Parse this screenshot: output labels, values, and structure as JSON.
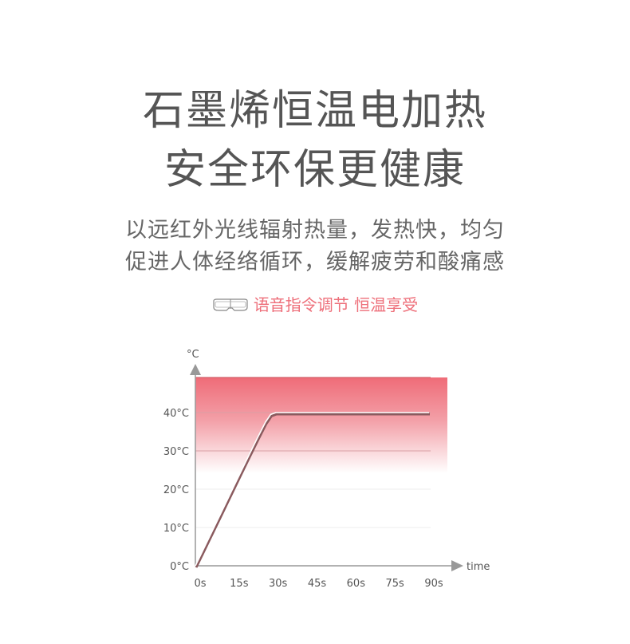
{
  "headline": [
    "石墨烯恒温电加热",
    "安全环保更健康"
  ],
  "description": [
    "以远红外光线辐射热量，发热快，均匀",
    "促进人体经络循环，缓解疲劳和酸痛感"
  ],
  "feature": {
    "icon": "eye-mask-icon",
    "text": "语音指令调节 恒温享受"
  },
  "colors": {
    "accent": "#ee6f7a",
    "text": "#555555"
  },
  "chart_data": {
    "type": "line",
    "title": "",
    "xlabel": "time",
    "ylabel": "°C",
    "x_ticks": [
      "0s",
      "15s",
      "30s",
      "45s",
      "60s",
      "75s",
      "90s"
    ],
    "y_ticks": [
      "0°C",
      "10°C",
      "20°C",
      "30°C",
      "40°C"
    ],
    "xlim": [
      0,
      90
    ],
    "ylim": [
      0,
      49
    ],
    "grid": true,
    "series": [
      {
        "x": [
          0,
          5,
          10,
          15,
          20,
          24,
          27,
          29,
          31,
          45,
          60,
          75,
          90
        ],
        "y": [
          0,
          7,
          14,
          21,
          28,
          33.5,
          37.5,
          39.5,
          40,
          40,
          40,
          40,
          40
        ]
      }
    ]
  }
}
